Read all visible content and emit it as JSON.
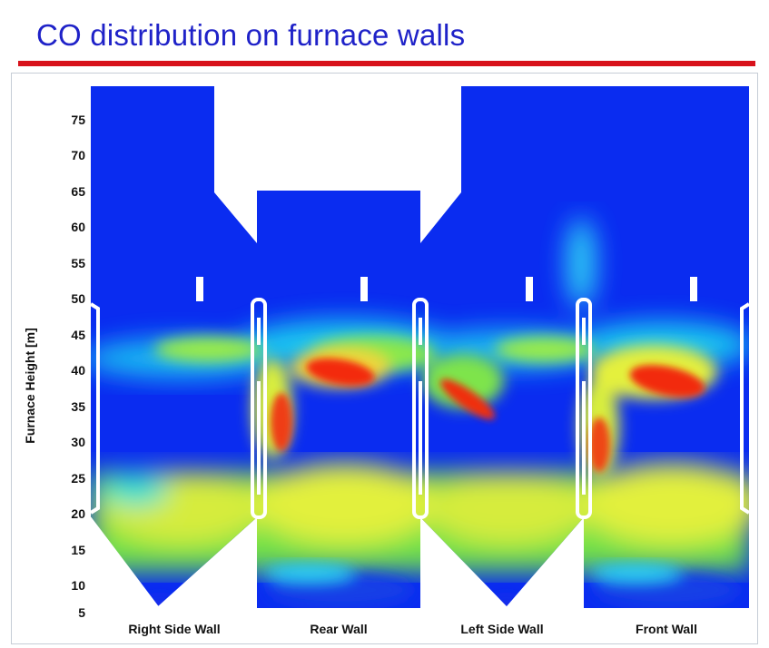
{
  "title": "CO distribution on furnace walls",
  "axis": {
    "y_label": "Furnace Height [m]",
    "ticks": [
      "75",
      "70",
      "65",
      "60",
      "55",
      "50",
      "45",
      "40",
      "35",
      "30",
      "25",
      "20",
      "15",
      "10",
      "5"
    ]
  },
  "walls": [
    {
      "label": "Right Side Wall"
    },
    {
      "label": "Rear Wall"
    },
    {
      "label": "Left Side Wall"
    },
    {
      "label": "Front Wall"
    }
  ],
  "colors": {
    "title": "#1f22c8",
    "rule": "#d8121b",
    "low": "#0a2cf0",
    "mid": "#22e0f0",
    "green": "#7ce84a",
    "yellow": "#e6f040",
    "high": "#f02a10"
  }
}
